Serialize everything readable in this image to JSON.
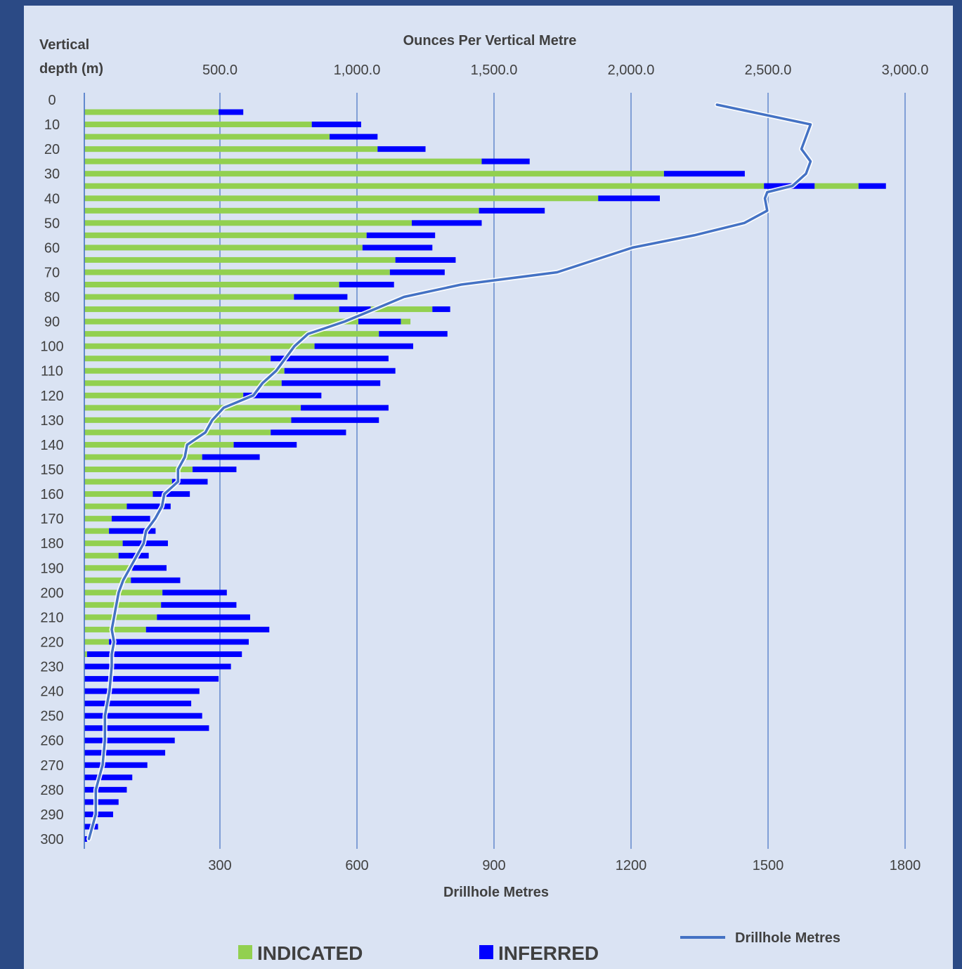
{
  "chart_data": {
    "type": "bar",
    "orientation": "horizontal",
    "stacked": true,
    "top_axis_title": "Ounces Per Vertical Metre",
    "bottom_axis_title": "Drillhole Metres",
    "y_axis_title_line1": "Vertical",
    "y_axis_title_line2": "depth (m)",
    "top_ticks": [
      "500.0",
      "1,000.0",
      "1,500.0",
      "2,000.0",
      "2,500.0",
      "3,000.0"
    ],
    "bottom_ticks": [
      "300",
      "600",
      "900",
      "1200",
      "1500",
      "1800"
    ],
    "depth_ticks": [
      "0",
      "10",
      "20",
      "30",
      "40",
      "50",
      "60",
      "70",
      "80",
      "90",
      "100",
      "110",
      "120",
      "130",
      "140",
      "150",
      "160",
      "170",
      "180",
      "190",
      "200",
      "210",
      "220",
      "230",
      "240",
      "250",
      "260",
      "270",
      "280",
      "290",
      "300"
    ],
    "bar_axis_max": 3000,
    "line_axis_max": 1800,
    "depth_range": [
      0,
      300
    ],
    "gridlines": true,
    "legend_position": "bottom",
    "colors": {
      "indicated": "#92d050",
      "inferred": "#0000ff",
      "line": "#4472c4"
    },
    "depths": [
      5,
      10,
      15,
      20,
      25,
      30,
      35,
      40,
      45,
      50,
      55,
      60,
      65,
      70,
      75,
      80,
      85,
      90,
      95,
      100,
      105,
      110,
      115,
      120,
      125,
      130,
      135,
      140,
      145,
      150,
      155,
      160,
      165,
      170,
      175,
      180,
      185,
      190,
      195,
      200,
      205,
      210,
      215,
      220,
      225,
      230,
      235,
      240,
      245,
      250,
      255,
      260,
      265,
      270,
      275,
      280,
      285,
      290,
      295,
      300
    ],
    "series": [
      {
        "name": "INDICATED",
        "values": [
          490,
          830,
          895,
          1070,
          1450,
          2115,
          2480,
          1875,
          1440,
          1195,
          1030,
          1015,
          1135,
          1115,
          930,
          765,
          930,
          1000,
          1075,
          840,
          680,
          730,
          720,
          580,
          790,
          755,
          680,
          545,
          430,
          395,
          320,
          250,
          155,
          100,
          90,
          140,
          125,
          175,
          170,
          285,
          280,
          265,
          225,
          90,
          10,
          0,
          0,
          0,
          0,
          0,
          0,
          0,
          0,
          0,
          0,
          0,
          0,
          0,
          0,
          0
        ],
        "values_ext": [
          0,
          0,
          0,
          0,
          0,
          0,
          160,
          0,
          0,
          0,
          0,
          0,
          0,
          0,
          0,
          0,
          225,
          35,
          0,
          0,
          0,
          0,
          0,
          0,
          0,
          0,
          0,
          0,
          0,
          0,
          0,
          0,
          0,
          0,
          0,
          0,
          0,
          0,
          0,
          0,
          0,
          0,
          0,
          0,
          0,
          0,
          0,
          0,
          0,
          0,
          0,
          0,
          0,
          0,
          0,
          0,
          0,
          0,
          0,
          0
        ]
      },
      {
        "name": "INFERRED",
        "values": [
          90,
          180,
          175,
          175,
          175,
          295,
          185,
          225,
          240,
          255,
          250,
          255,
          220,
          200,
          200,
          195,
          115,
          155,
          250,
          360,
          430,
          405,
          360,
          285,
          320,
          320,
          275,
          230,
          210,
          160,
          130,
          135,
          160,
          140,
          170,
          165,
          110,
          125,
          180,
          235,
          275,
          340,
          450,
          510,
          565,
          535,
          490,
          420,
          390,
          430,
          455,
          330,
          295,
          230,
          175,
          155,
          125,
          105,
          50,
          10
        ],
        "values_ext": [
          0,
          0,
          0,
          0,
          0,
          0,
          100,
          0,
          0,
          0,
          0,
          0,
          0,
          0,
          0,
          0,
          65,
          0,
          0,
          0,
          0,
          0,
          0,
          0,
          0,
          0,
          0,
          0,
          0,
          0,
          0,
          0,
          0,
          0,
          0,
          0,
          0,
          0,
          0,
          0,
          0,
          0,
          0,
          0,
          0,
          0,
          0,
          0,
          0,
          0,
          0,
          0,
          0,
          0,
          0,
          0,
          0,
          0,
          0,
          0
        ]
      },
      {
        "name": "Drillhole Metres",
        "type": "line",
        "depth_points": [
          2,
          10,
          15,
          20,
          25,
          30,
          35,
          37.5,
          40,
          45,
          50,
          55,
          60,
          70,
          75,
          80,
          85,
          90,
          95,
          100,
          105,
          110,
          115,
          120,
          125,
          130,
          135,
          140,
          145,
          150,
          155,
          160,
          165,
          170,
          175,
          180,
          185,
          190,
          195,
          200,
          205,
          210,
          215,
          220,
          225,
          230,
          240,
          250,
          260,
          270,
          280,
          290,
          300
        ],
        "values": [
          1385,
          1590,
          1580,
          1570,
          1590,
          1580,
          1550,
          1495,
          1490,
          1495,
          1445,
          1335,
          1200,
          1035,
          825,
          700,
          635,
          570,
          490,
          460,
          440,
          420,
          390,
          370,
          305,
          280,
          265,
          225,
          220,
          205,
          205,
          175,
          170,
          155,
          135,
          130,
          115,
          100,
          85,
          75,
          70,
          65,
          60,
          65,
          60,
          60,
          55,
          45,
          45,
          40,
          25,
          25,
          10
        ]
      }
    ],
    "legend": {
      "indicated_label": "INDICATED",
      "inferred_label": "INFERRED",
      "line_label": "Drillhole Metres"
    }
  }
}
